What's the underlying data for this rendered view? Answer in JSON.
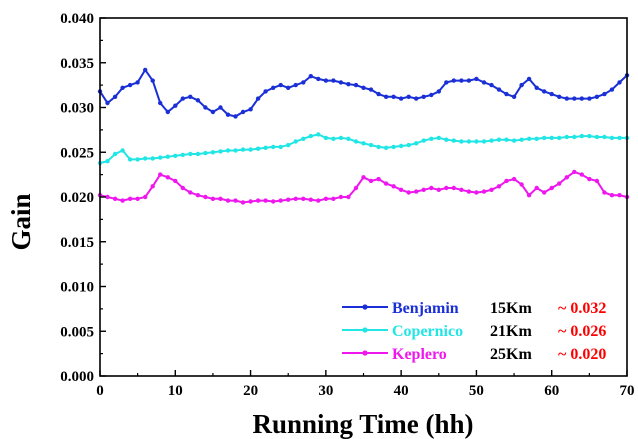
{
  "chart_data": {
    "type": "line",
    "xlabel": "Running Time (hh)",
    "ylabel": "Gain",
    "xlim": [
      0,
      70
    ],
    "ylim": [
      0,
      0.04
    ],
    "x_ticks": [
      "0",
      "10",
      "20",
      "30",
      "40",
      "50",
      "60",
      "70"
    ],
    "y_ticks": [
      "0.000",
      "0.005",
      "0.010",
      "0.015",
      "0.020",
      "0.025",
      "0.030",
      "0.035",
      "0.040"
    ],
    "grid": false,
    "legend_position": "bottom-right",
    "series": [
      {
        "name": "Benjamin",
        "distance": "15Km",
        "annotation": "~ 0.032",
        "color": "#1a2fd6",
        "annotation_color": "#ff0000",
        "x": [
          0,
          1,
          2,
          3,
          4,
          5,
          6,
          7,
          8,
          9,
          10,
          11,
          12,
          13,
          14,
          15,
          16,
          17,
          18,
          19,
          20,
          21,
          22,
          23,
          24,
          25,
          26,
          27,
          28,
          29,
          30,
          31,
          32,
          33,
          34,
          35,
          36,
          37,
          38,
          39,
          40,
          41,
          42,
          43,
          44,
          45,
          46,
          47,
          48,
          49,
          50,
          51,
          52,
          53,
          54,
          55,
          56,
          57,
          58,
          59,
          60,
          61,
          62,
          63,
          64,
          65,
          66,
          67,
          68,
          69,
          70
        ],
        "y": [
          0.0318,
          0.0305,
          0.0312,
          0.0322,
          0.0325,
          0.0328,
          0.0342,
          0.033,
          0.0305,
          0.0295,
          0.0302,
          0.031,
          0.0312,
          0.0308,
          0.03,
          0.0295,
          0.03,
          0.0292,
          0.029,
          0.0295,
          0.0298,
          0.031,
          0.0318,
          0.0322,
          0.0325,
          0.0322,
          0.0325,
          0.0328,
          0.0335,
          0.0332,
          0.033,
          0.033,
          0.0328,
          0.0326,
          0.0325,
          0.0322,
          0.032,
          0.0315,
          0.0312,
          0.0312,
          0.031,
          0.0312,
          0.031,
          0.0312,
          0.0314,
          0.0318,
          0.0328,
          0.033,
          0.033,
          0.033,
          0.0332,
          0.0328,
          0.0325,
          0.032,
          0.0315,
          0.0312,
          0.0325,
          0.0332,
          0.0322,
          0.0318,
          0.0315,
          0.0312,
          0.031,
          0.031,
          0.031,
          0.031,
          0.0312,
          0.0315,
          0.032,
          0.0328,
          0.0336
        ]
      },
      {
        "name": "Copernico",
        "distance": "21Km",
        "annotation": "~ 0.026",
        "color": "#22e5e5",
        "annotation_color": "#ff0000",
        "x": [
          0,
          1,
          2,
          3,
          4,
          5,
          6,
          7,
          8,
          9,
          10,
          11,
          12,
          13,
          14,
          15,
          16,
          17,
          18,
          19,
          20,
          21,
          22,
          23,
          24,
          25,
          26,
          27,
          28,
          29,
          30,
          31,
          32,
          33,
          34,
          35,
          36,
          37,
          38,
          39,
          40,
          41,
          42,
          43,
          44,
          45,
          46,
          47,
          48,
          49,
          50,
          51,
          52,
          53,
          54,
          55,
          56,
          57,
          58,
          59,
          60,
          61,
          62,
          63,
          64,
          65,
          66,
          67,
          68,
          69,
          70
        ],
        "y": [
          0.0238,
          0.024,
          0.0248,
          0.0252,
          0.0242,
          0.0242,
          0.0243,
          0.0243,
          0.0244,
          0.0245,
          0.0246,
          0.0247,
          0.0248,
          0.0248,
          0.0249,
          0.025,
          0.0251,
          0.0252,
          0.0252,
          0.0253,
          0.0253,
          0.0254,
          0.0255,
          0.0256,
          0.0256,
          0.0258,
          0.0262,
          0.0265,
          0.0268,
          0.027,
          0.0266,
          0.0265,
          0.0266,
          0.0265,
          0.0262,
          0.026,
          0.0258,
          0.0256,
          0.0255,
          0.0256,
          0.0257,
          0.0258,
          0.026,
          0.0263,
          0.0265,
          0.0266,
          0.0264,
          0.0263,
          0.0262,
          0.0262,
          0.0262,
          0.0262,
          0.0263,
          0.0264,
          0.0264,
          0.0263,
          0.0264,
          0.0265,
          0.0265,
          0.0266,
          0.0266,
          0.0266,
          0.0267,
          0.0267,
          0.0268,
          0.0268,
          0.0267,
          0.0267,
          0.0266,
          0.0266,
          0.0266
        ]
      },
      {
        "name": "Keplero",
        "distance": "25Km",
        "annotation": "~ 0.020",
        "color": "#ee18ee",
        "annotation_color": "#ff0000",
        "x": [
          0,
          1,
          2,
          3,
          4,
          5,
          6,
          7,
          8,
          9,
          10,
          11,
          12,
          13,
          14,
          15,
          16,
          17,
          18,
          19,
          20,
          21,
          22,
          23,
          24,
          25,
          26,
          27,
          28,
          29,
          30,
          31,
          32,
          33,
          34,
          35,
          36,
          37,
          38,
          39,
          40,
          41,
          42,
          43,
          44,
          45,
          46,
          47,
          48,
          49,
          50,
          51,
          52,
          53,
          54,
          55,
          56,
          57,
          58,
          59,
          60,
          61,
          62,
          63,
          64,
          65,
          66,
          67,
          68,
          69,
          70
        ],
        "y": [
          0.0202,
          0.02,
          0.0198,
          0.0196,
          0.0198,
          0.0198,
          0.02,
          0.0212,
          0.0225,
          0.0222,
          0.0218,
          0.021,
          0.0205,
          0.0202,
          0.02,
          0.0198,
          0.0198,
          0.0196,
          0.0196,
          0.0194,
          0.0195,
          0.0196,
          0.0196,
          0.0195,
          0.0196,
          0.0197,
          0.0198,
          0.0198,
          0.0197,
          0.0196,
          0.0198,
          0.0198,
          0.02,
          0.02,
          0.021,
          0.0222,
          0.0218,
          0.022,
          0.0215,
          0.0212,
          0.0208,
          0.0205,
          0.0206,
          0.0208,
          0.021,
          0.0208,
          0.021,
          0.021,
          0.0208,
          0.0206,
          0.0205,
          0.0206,
          0.0208,
          0.0212,
          0.0218,
          0.022,
          0.0214,
          0.0202,
          0.021,
          0.0205,
          0.021,
          0.0215,
          0.0222,
          0.0228,
          0.0225,
          0.022,
          0.0218,
          0.0205,
          0.0202,
          0.0202,
          0.02
        ]
      }
    ]
  }
}
